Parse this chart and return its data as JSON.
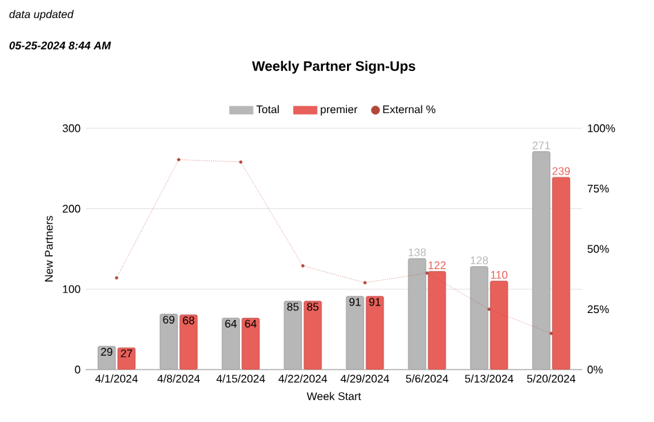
{
  "chart_data": {
    "type": "bar",
    "title": "Weekly Partner Sign-Ups",
    "xlabel": "Week Start",
    "ylabel": "New Partners",
    "annotations": [
      "data updated",
      "05-25-2024 8:44 AM"
    ],
    "categories": [
      "4/1/2024",
      "4/8/2024",
      "4/15/2024",
      "4/22/2024",
      "4/29/2024",
      "5/6/2024",
      "5/13/2024",
      "5/20/2024"
    ],
    "series": [
      {
        "name": "Total",
        "color": "#b7b7b7",
        "values": [
          29,
          69,
          64,
          85,
          91,
          138,
          128,
          271
        ],
        "value_labels": [
          "29",
          "69",
          "64",
          "85",
          "91",
          "138",
          "128",
          "271"
        ]
      },
      {
        "name": "premier",
        "color": "#e8605a",
        "values": [
          27,
          68,
          64,
          85,
          91,
          122,
          110,
          239
        ],
        "value_labels": [
          "27",
          "68",
          "64",
          "85",
          "91",
          "122",
          "110",
          "239"
        ]
      },
      {
        "name": "External %",
        "type": "line",
        "axis": "y2",
        "color": "#b5463a",
        "line_style": "dotted",
        "marker": "circle",
        "values": [
          38,
          87,
          86,
          43,
          36,
          40,
          25,
          15
        ]
      }
    ],
    "ylim": [
      0,
      300
    ],
    "yticks": [
      0,
      100,
      200,
      300
    ],
    "y2lim": [
      0,
      100
    ],
    "y2ticks": [
      {
        "value": 0,
        "label": "0%"
      },
      {
        "value": 25,
        "label": "25%"
      },
      {
        "value": 50,
        "label": "50%"
      },
      {
        "value": 75,
        "label": "75%"
      },
      {
        "value": 100,
        "label": "100%"
      }
    ],
    "grid": "y",
    "legend": "top"
  }
}
